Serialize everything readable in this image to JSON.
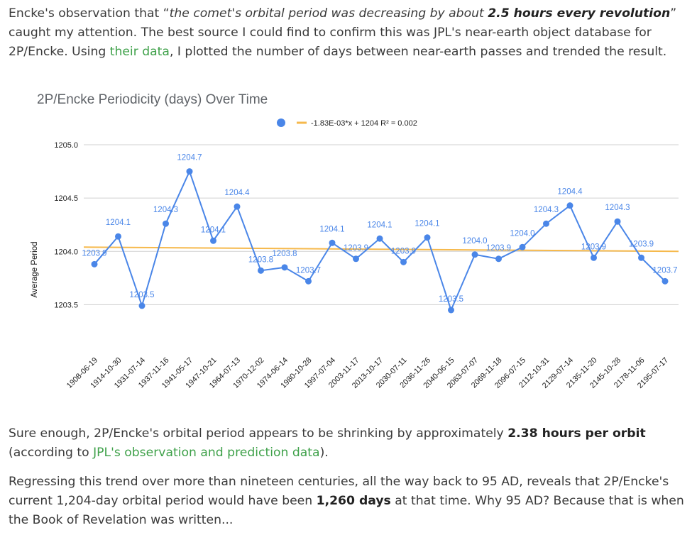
{
  "para1": {
    "t1": "Encke's observation that “",
    "em1": "the comet's orbital period was decreasing by about ",
    "b1": "2.5 hours every revolution",
    "t2": "” caught my attention. The best source I could find to confirm this was JPL's near-earth object database for 2P/Encke. Using ",
    "link": "their data",
    "t3": ", I plotted the number of days between near-earth passes and trended the result."
  },
  "para2": {
    "t1": "Sure enough, 2P/Encke's orbital period appears to be shrinking by approximately ",
    "b1": "2.38 hours per orbit",
    "t2": " (according to ",
    "link": "JPL's observation and prediction data",
    "t3": ")."
  },
  "para3": {
    "t1": "Regressing this trend over more than nineteen centuries, all the way back to 95 AD, reveals that 2P/Encke's current 1,204-day orbital period would have been ",
    "b1": "1,260 days",
    "t2": " at that time. Why 95 AD? Because that is when the Book of Revelation was written..."
  },
  "chart_data": {
    "type": "line",
    "title": "2P/Encke Periodicity (days) Over Time",
    "ylabel": "Average Period",
    "xlabel": "",
    "ylim": [
      1203.25,
      1205.0
    ],
    "yticks": [
      1203.5,
      1204.0,
      1204.5,
      1205.0
    ],
    "ytick_labels": [
      "1203.5",
      "1204.0",
      "1204.5",
      "1205.0"
    ],
    "grid": true,
    "legend_position": "top",
    "x": [
      "1908-06-19",
      "1914-10-30",
      "1931-07-14",
      "1937-11-16",
      "1941-05-17",
      "1947-10-21",
      "1964-07-13",
      "1970-12-02",
      "1974-06-14",
      "1980-10-28",
      "1997-07-04",
      "2003-11-17",
      "2013-10-17",
      "2030-07-11",
      "2036-11-26",
      "2040-06-15",
      "2063-07-07",
      "2069-11-18",
      "2096-07-15",
      "2112-10-31",
      "2129-07-14",
      "2135-11-20",
      "2145-10-28",
      "2178-11-06",
      "2195-07-17"
    ],
    "series": [
      {
        "name": "",
        "color": "#4a86e8",
        "values": [
          1203.88,
          1204.14,
          1203.49,
          1204.26,
          1204.75,
          1204.1,
          1204.42,
          1203.82,
          1203.85,
          1203.72,
          1204.08,
          1203.93,
          1204.12,
          1203.9,
          1204.13,
          1203.45,
          1203.97,
          1203.93,
          1204.04,
          1204.26,
          1204.43,
          1203.94,
          1204.28,
          1203.94,
          1203.72
        ],
        "labels": [
          "1203.9",
          "1204.1",
          "1203.5",
          "1204.3",
          "1204.7",
          "1204.1",
          "1204.4",
          "1203.8",
          "1203.8",
          "1203.7",
          "1204.1",
          "1203.9",
          "1204.1",
          "1203.9",
          "1204.1",
          "1203.5",
          "1204.0",
          "1203.9",
          "1204.0",
          "1204.3",
          "1204.4",
          "1203.9",
          "1204.3",
          "1203.9",
          "1203.7"
        ]
      }
    ],
    "trendline": {
      "label": "-1.83E-03*x + 1204 R² = 0.002",
      "color": "#f6b94c",
      "start": 1204.04,
      "end": 1204.0
    }
  }
}
